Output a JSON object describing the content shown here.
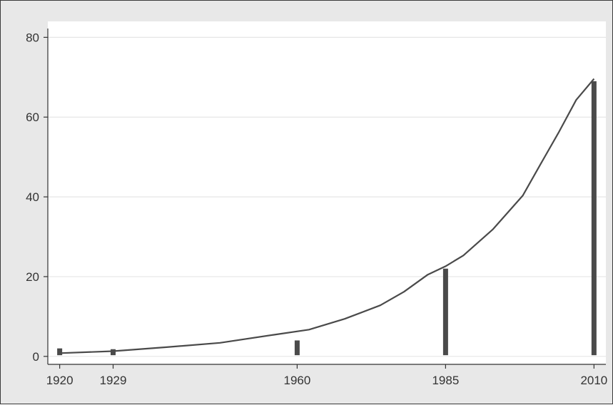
{
  "chart_data": {
    "type": "bar",
    "title": "",
    "xlabel": "",
    "ylabel": "",
    "x_ticks": [
      1920,
      1929,
      1960,
      1985,
      2010
    ],
    "y_ticks": [
      0,
      20,
      40,
      60,
      80
    ],
    "xlim": [
      1918,
      2012
    ],
    "ylim": [
      -2,
      84
    ],
    "grid": true,
    "legend": "none",
    "bars": [
      {
        "x": 1920,
        "low": 0.3,
        "high": 2.0
      },
      {
        "x": 1929,
        "low": 0.3,
        "high": 1.8
      },
      {
        "x": 1960,
        "low": 0.3,
        "high": 4.0
      },
      {
        "x": 1985,
        "low": 0.3,
        "high": 22.0
      },
      {
        "x": 2010,
        "low": 0.3,
        "high": 69.0
      }
    ],
    "trend_line": {
      "x": [
        1920,
        1929,
        1938,
        1947,
        1956,
        1962,
        1968,
        1974,
        1978,
        1982,
        1985,
        1988,
        1993,
        1998,
        2001,
        2004,
        2007,
        2010
      ],
      "y": [
        0.8,
        1.3,
        2.3,
        3.4,
        5.4,
        6.7,
        9.4,
        12.8,
        16.2,
        20.5,
        22.6,
        25.3,
        31.9,
        40.3,
        48.2,
        56.0,
        64.3,
        69.6
      ]
    },
    "colors": {
      "background": "#e8e8e8",
      "plot_area": "#ffffff",
      "marks": "#4a4a4a",
      "grid": "#e6e6e6"
    }
  }
}
